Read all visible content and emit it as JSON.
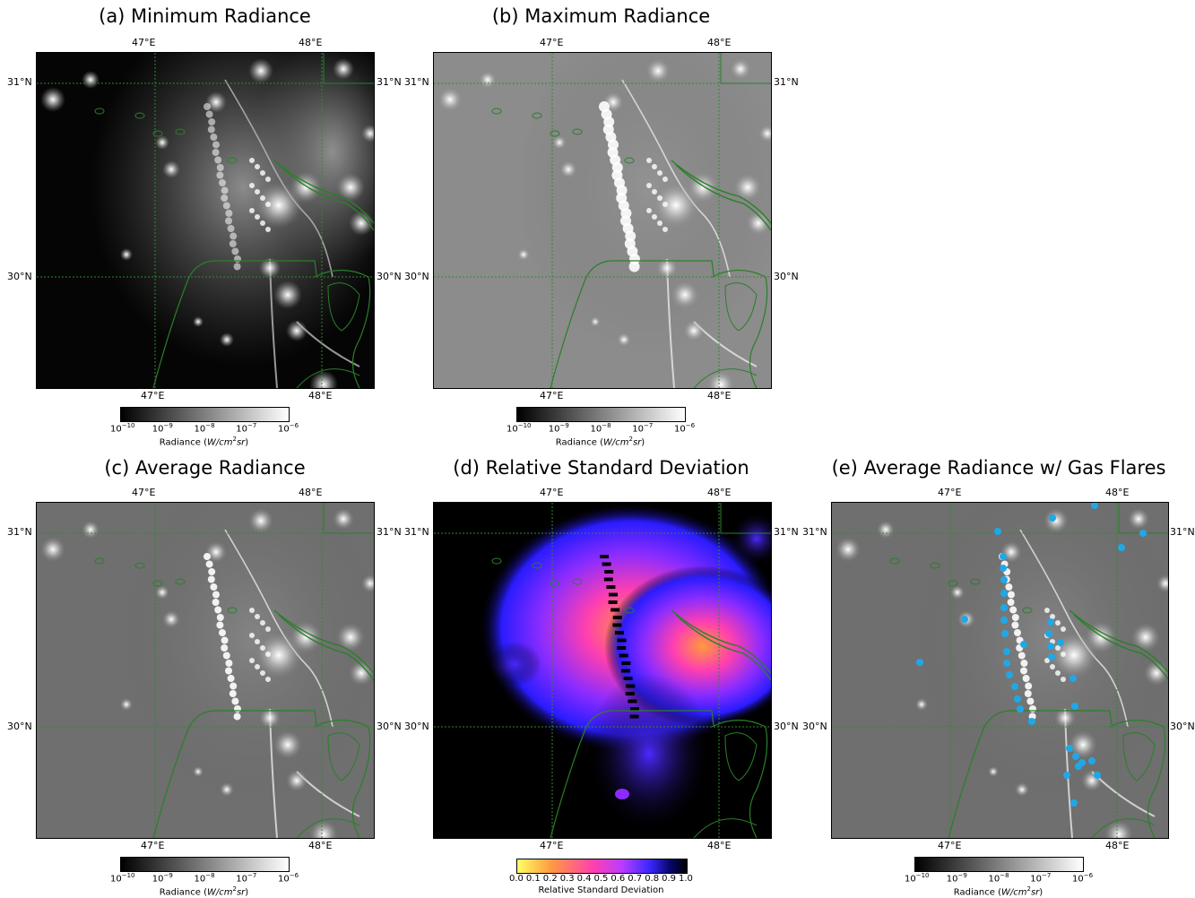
{
  "panels": [
    {
      "title": "(a) Minimum Radiance",
      "kind": "min"
    },
    {
      "title": "(b) Maximum Radiance",
      "kind": "max"
    },
    {
      "title": "(c) Average Radiance",
      "kind": "avg"
    },
    {
      "title": "(d) Relative Standard Deviation",
      "kind": "rsd"
    },
    {
      "title": "(e) Average Radiance w/ Gas Flares",
      "kind": "flares"
    }
  ],
  "axes": {
    "lon_labels": [
      "47°E",
      "48°E"
    ],
    "lat_labels": [
      "31°N",
      "30°N"
    ]
  },
  "colorbar_radiance": {
    "tick_labels": [
      "10",
      "10",
      "10",
      "10",
      "10"
    ],
    "tick_exponents": [
      "−10",
      "−9",
      "−8",
      "−7",
      "−6"
    ],
    "title_prefix": "Radiance (",
    "title_italic": "W/cm",
    "title_sup": "2",
    "title_italic2": "sr",
    "title_suffix": ")",
    "gradient": [
      "#000000",
      "#ffffff"
    ]
  },
  "colorbar_rsd": {
    "tick_labels": [
      "0.0",
      "0.1",
      "0.2",
      "0.3",
      "0.4",
      "0.5",
      "0.6",
      "0.7",
      "0.8",
      "0.9",
      "1.0"
    ],
    "title": "Relative Standard Deviation",
    "gradient": [
      "#ffff66",
      "#ff8c3a",
      "#ff3fb0",
      "#c83cff",
      "#4b28ff",
      "#06066e",
      "#000000"
    ]
  },
  "colors": {
    "coastline": "#2a7f2a",
    "gridline": "#2e8b2e",
    "flare_marker": "#1fa8e8"
  }
}
